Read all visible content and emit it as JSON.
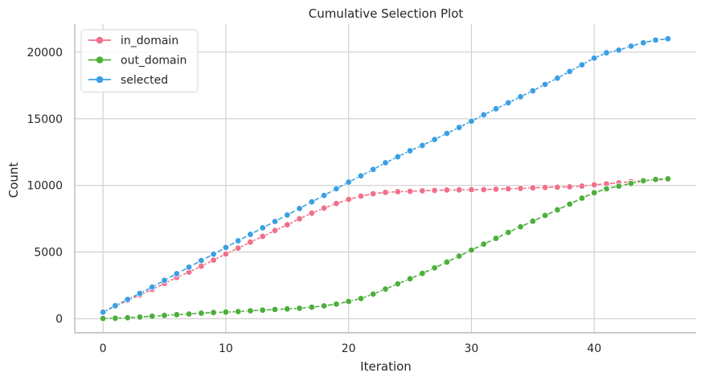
{
  "chart_data": {
    "type": "line",
    "title": "Cumulative Selection Plot",
    "xlabel": "Iteration",
    "ylabel": "Count",
    "xlim": [
      -2.3,
      48.3
    ],
    "ylim": [
      -1050,
      22100
    ],
    "xticks": [
      0,
      10,
      20,
      30,
      40
    ],
    "yticks": [
      0,
      5000,
      10000,
      15000,
      20000
    ],
    "grid": true,
    "legend_position": "top-left",
    "x": [
      0,
      1,
      2,
      3,
      4,
      5,
      6,
      7,
      8,
      9,
      10,
      11,
      12,
      13,
      14,
      15,
      16,
      17,
      18,
      19,
      20,
      21,
      22,
      23,
      24,
      25,
      26,
      27,
      28,
      29,
      30,
      31,
      32,
      33,
      34,
      35,
      36,
      37,
      38,
      39,
      40,
      41,
      42,
      43,
      44,
      45,
      46
    ],
    "series": [
      {
        "name": "in_domain",
        "color": "#f0708a",
        "values": [
          480,
          950,
          1370,
          1780,
          2200,
          2650,
          3100,
          3500,
          3950,
          4400,
          4860,
          5300,
          5750,
          6180,
          6620,
          7050,
          7500,
          7920,
          8300,
          8650,
          8950,
          9200,
          9380,
          9480,
          9530,
          9560,
          9600,
          9630,
          9660,
          9670,
          9680,
          9690,
          9720,
          9750,
          9780,
          9820,
          9850,
          9870,
          9900,
          9950,
          10050,
          10120,
          10200,
          10280,
          10350,
          10420,
          10450
        ]
      },
      {
        "name": "out_domain",
        "color": "#4caf3a",
        "values": [
          20,
          40,
          80,
          130,
          190,
          250,
          310,
          360,
          420,
          470,
          500,
          540,
          600,
          650,
          700,
          740,
          790,
          870,
          970,
          1100,
          1300,
          1520,
          1850,
          2230,
          2620,
          3000,
          3400,
          3820,
          4250,
          4700,
          5150,
          5600,
          6030,
          6480,
          6900,
          7320,
          7750,
          8170,
          8600,
          9050,
          9450,
          9750,
          9950,
          10150,
          10350,
          10450,
          10500
        ]
      },
      {
        "name": "selected",
        "color": "#3b9fe3",
        "values": [
          500,
          980,
          1450,
          1900,
          2380,
          2880,
          3380,
          3870,
          4370,
          4850,
          5350,
          5850,
          6330,
          6820,
          7300,
          7780,
          8270,
          8770,
          9250,
          9750,
          10250,
          10720,
          11200,
          11700,
          12150,
          12600,
          13000,
          13450,
          13900,
          14350,
          14820,
          15300,
          15750,
          16200,
          16650,
          17100,
          17580,
          18050,
          18550,
          19050,
          19550,
          19950,
          20150,
          20450,
          20700,
          20900,
          21000
        ]
      }
    ]
  }
}
